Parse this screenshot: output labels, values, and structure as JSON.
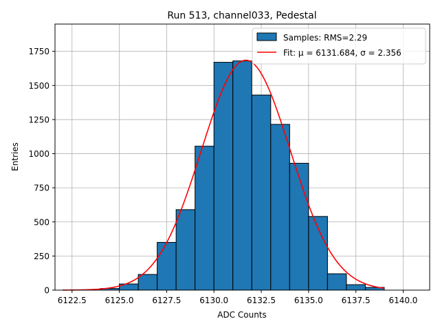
{
  "chart_data": {
    "type": "bar",
    "title": "Run 513, channel033, Pedestal",
    "xlabel": "ADC Counts",
    "ylabel": "Entries",
    "xlim": [
      6121.6,
      6141.4
    ],
    "ylim": [
      0,
      1950
    ],
    "x_ticks": [
      6122.5,
      6125.0,
      6127.5,
      6130.0,
      6132.5,
      6135.0,
      6137.5,
      6140.0
    ],
    "x_tick_labels": [
      "6122.5",
      "6125.0",
      "6127.5",
      "6130.0",
      "6132.5",
      "6135.0",
      "6137.5",
      "6140.0"
    ],
    "y_ticks": [
      0,
      250,
      500,
      750,
      1000,
      1250,
      1500,
      1750
    ],
    "y_tick_labels": [
      "0",
      "250",
      "500",
      "750",
      "1000",
      "1250",
      "1500",
      "1750"
    ],
    "grid": true,
    "bar_color": "#1f77b4",
    "fit_color": "#ff0000",
    "bins": [
      {
        "left": 6124,
        "right": 6125,
        "value": 12
      },
      {
        "left": 6125,
        "right": 6126,
        "value": 45
      },
      {
        "left": 6126,
        "right": 6127,
        "value": 115
      },
      {
        "left": 6127,
        "right": 6128,
        "value": 350
      },
      {
        "left": 6128,
        "right": 6129,
        "value": 590
      },
      {
        "left": 6129,
        "right": 6130,
        "value": 1055
      },
      {
        "left": 6130,
        "right": 6131,
        "value": 1670
      },
      {
        "left": 6131,
        "right": 6132,
        "value": 1680
      },
      {
        "left": 6132,
        "right": 6133,
        "value": 1430
      },
      {
        "left": 6133,
        "right": 6134,
        "value": 1215
      },
      {
        "left": 6134,
        "right": 6135,
        "value": 930
      },
      {
        "left": 6135,
        "right": 6136,
        "value": 540
      },
      {
        "left": 6136,
        "right": 6137,
        "value": 120
      },
      {
        "left": 6137,
        "right": 6138,
        "value": 40
      },
      {
        "left": 6138,
        "right": 6139,
        "value": 20
      }
    ],
    "fit": {
      "mu": 6131.684,
      "sigma": 2.356,
      "amplitude": 1685,
      "x_range": [
        6122.0,
        6139.0
      ]
    },
    "legend": {
      "position": "top-right",
      "bar_label": "Samples: RMS=2.29",
      "fit_label": "Fit: μ = 6131.684, σ = 2.356"
    }
  }
}
